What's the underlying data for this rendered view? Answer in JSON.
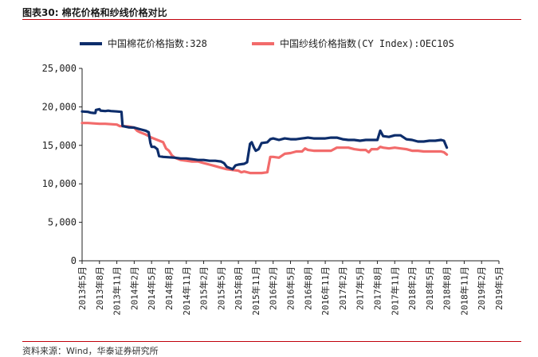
{
  "figure": {
    "title": "图表30:   棉花价格和纱线价格对比",
    "source": "资料来源：Wind，华泰证券研究所"
  },
  "colors": {
    "accent_rule": "#c0000b",
    "cotton": "#0d2d6b",
    "yarn": "#f26b6b"
  },
  "chart_data": {
    "type": "line",
    "title": "",
    "xlabel": "",
    "ylabel": "",
    "ylim": [
      0,
      25000
    ],
    "yticks": [
      "0",
      "5,000",
      "10,000",
      "15,000",
      "20,000",
      "25,000"
    ],
    "xtick_labels": [
      "2013年5月",
      "2013年8月",
      "2013年11月",
      "2014年2月",
      "2014年5月",
      "2014年8月",
      "2014年11月",
      "2015年2月",
      "2015年5月",
      "2015年8月",
      "2015年11月",
      "2016年2月",
      "2016年5月",
      "2016年8月",
      "2016年11月",
      "2017年2月",
      "2017年5月",
      "2017年8月",
      "2017年11月",
      "2018年2月",
      "2018年5月",
      "2018年8月",
      "2018年11月",
      "2019年2月",
      "2019年5月"
    ],
    "legend_position": "top",
    "grid": false,
    "series": [
      {
        "name": "中国棉花价格指数:328",
        "color": "#0d2d6b",
        "points": [
          [
            0,
            19400
          ],
          [
            1,
            19350
          ],
          [
            1.5,
            19250
          ],
          [
            2,
            19200
          ],
          [
            2.3,
            19200
          ],
          [
            2.4,
            19600
          ],
          [
            3,
            19700
          ],
          [
            3.2,
            19500
          ],
          [
            4,
            19450
          ],
          [
            4.5,
            19500
          ],
          [
            5,
            19450
          ],
          [
            6,
            19400
          ],
          [
            6.8,
            19350
          ],
          [
            7,
            17500
          ],
          [
            8,
            17350
          ],
          [
            9,
            17300
          ],
          [
            10,
            17100
          ],
          [
            11,
            16900
          ],
          [
            11.5,
            16700
          ],
          [
            11.8,
            15300
          ],
          [
            12,
            14800
          ],
          [
            12.5,
            14800
          ],
          [
            13,
            14500
          ],
          [
            13.3,
            13600
          ],
          [
            14,
            13500
          ],
          [
            15,
            13450
          ],
          [
            16,
            13400
          ],
          [
            17,
            13300
          ],
          [
            18,
            13300
          ],
          [
            19,
            13200
          ],
          [
            20,
            13100
          ],
          [
            21,
            13100
          ],
          [
            22,
            13000
          ],
          [
            23,
            13000
          ],
          [
            24,
            12900
          ],
          [
            24.5,
            12700
          ],
          [
            25,
            12200
          ],
          [
            26,
            11900
          ],
          [
            26.5,
            12400
          ],
          [
            27,
            12500
          ],
          [
            28,
            12600
          ],
          [
            28.5,
            12800
          ],
          [
            29,
            15200
          ],
          [
            29.3,
            15400
          ],
          [
            29.7,
            14700
          ],
          [
            30,
            14300
          ],
          [
            30.5,
            14500
          ],
          [
            31,
            15300
          ],
          [
            32,
            15400
          ],
          [
            32.5,
            15800
          ],
          [
            33,
            15900
          ],
          [
            34,
            15700
          ],
          [
            35,
            15900
          ],
          [
            36,
            15800
          ],
          [
            37,
            15800
          ],
          [
            38,
            15900
          ],
          [
            39,
            16000
          ],
          [
            40,
            15900
          ],
          [
            41,
            15900
          ],
          [
            42,
            15900
          ],
          [
            43,
            16000
          ],
          [
            44,
            16000
          ],
          [
            45,
            15800
          ],
          [
            46,
            15700
          ],
          [
            47,
            15700
          ],
          [
            48,
            15600
          ],
          [
            49,
            15700
          ],
          [
            50,
            15700
          ],
          [
            51,
            15700
          ],
          [
            51.5,
            16900
          ],
          [
            52,
            16200
          ],
          [
            53,
            16100
          ],
          [
            54,
            16300
          ],
          [
            55,
            16300
          ],
          [
            56,
            15800
          ],
          [
            57,
            15700
          ],
          [
            58,
            15500
          ],
          [
            59,
            15500
          ],
          [
            60,
            15600
          ],
          [
            61,
            15600
          ],
          [
            62,
            15700
          ],
          [
            62.5,
            15600
          ],
          [
            63,
            14700
          ]
        ]
      },
      {
        "name": "中国纱线价格指数(CY Index):OEC10S",
        "color": "#f26b6b",
        "points": [
          [
            0,
            17900
          ],
          [
            1,
            17900
          ],
          [
            2,
            17850
          ],
          [
            3,
            17800
          ],
          [
            4,
            17800
          ],
          [
            5,
            17750
          ],
          [
            6,
            17700
          ],
          [
            6.5,
            17500
          ],
          [
            7,
            17500
          ],
          [
            8,
            17450
          ],
          [
            9,
            17300
          ],
          [
            9.5,
            16900
          ],
          [
            10,
            16700
          ],
          [
            11,
            16400
          ],
          [
            12,
            16000
          ],
          [
            13,
            15700
          ],
          [
            14,
            15400
          ],
          [
            14.5,
            14600
          ],
          [
            15,
            14300
          ],
          [
            15.5,
            13700
          ],
          [
            16,
            13400
          ],
          [
            17,
            13100
          ],
          [
            18,
            13000
          ],
          [
            19,
            12900
          ],
          [
            20,
            12900
          ],
          [
            21,
            12700
          ],
          [
            22,
            12500
          ],
          [
            23,
            12300
          ],
          [
            24,
            12100
          ],
          [
            25,
            11900
          ],
          [
            26,
            11800
          ],
          [
            27,
            11700
          ],
          [
            27.5,
            11500
          ],
          [
            28,
            11600
          ],
          [
            29,
            11400
          ],
          [
            30,
            11400
          ],
          [
            31,
            11400
          ],
          [
            32,
            11500
          ],
          [
            32.5,
            13500
          ],
          [
            33,
            13500
          ],
          [
            34,
            13400
          ],
          [
            35,
            13900
          ],
          [
            36,
            14000
          ],
          [
            37,
            14200
          ],
          [
            38,
            14200
          ],
          [
            38.5,
            14600
          ],
          [
            39,
            14400
          ],
          [
            40,
            14300
          ],
          [
            41,
            14300
          ],
          [
            42,
            14300
          ],
          [
            43,
            14300
          ],
          [
            44,
            14700
          ],
          [
            45,
            14700
          ],
          [
            46,
            14700
          ],
          [
            47,
            14500
          ],
          [
            48,
            14400
          ],
          [
            49,
            14400
          ],
          [
            49.5,
            14100
          ],
          [
            50,
            14500
          ],
          [
            51,
            14500
          ],
          [
            51.5,
            14800
          ],
          [
            52,
            14700
          ],
          [
            53,
            14600
          ],
          [
            54,
            14700
          ],
          [
            55,
            14600
          ],
          [
            56,
            14500
          ],
          [
            57,
            14300
          ],
          [
            58,
            14300
          ],
          [
            59,
            14200
          ],
          [
            60,
            14200
          ],
          [
            61,
            14200
          ],
          [
            62,
            14200
          ],
          [
            62.5,
            14100
          ],
          [
            63,
            13800
          ]
        ]
      }
    ]
  }
}
